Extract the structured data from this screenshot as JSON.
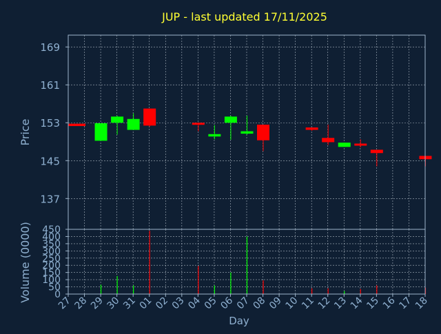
{
  "colors": {
    "background": "#0f1f33",
    "title": "#ffff33",
    "axis_text": "#8fb0d0",
    "frame": "#9fb6cc",
    "grid": "#c8d2dc",
    "up": "#00ff00",
    "down": "#ff0000"
  },
  "chart_data": {
    "type": "candlestick",
    "title": "JUP - last updated 17/11/2025",
    "xlabel": "Day",
    "price_ylabel": "Price",
    "volume_ylabel": "Volume (0000)",
    "grid": true,
    "x_tick_labels": [
      "27",
      "28",
      "29",
      "30",
      "31",
      "01",
      "02",
      "03",
      "04",
      "05",
      "06",
      "07",
      "08",
      "09",
      "10",
      "11",
      "12",
      "13",
      "14",
      "15",
      "16",
      "17",
      "18"
    ],
    "price_ylim": [
      130.5,
      171.5
    ],
    "price_yticks": [
      169,
      161,
      153,
      145,
      137
    ],
    "volume_ylim": [
      0,
      450
    ],
    "volume_yticks": [
      450,
      400,
      350,
      300,
      250,
      200,
      150,
      100,
      50,
      0
    ],
    "candles": [
      {
        "day": "27",
        "open": 152.8,
        "high": 152.8,
        "low": 152.3,
        "close": 152.3,
        "volume": 0
      },
      {
        "day": "28",
        "open": 149.2,
        "high": 152.9,
        "low": 149.2,
        "close": 152.9,
        "volume": 65
      },
      {
        "day": "29",
        "open": 153.0,
        "high": 154.5,
        "low": 150.5,
        "close": 154.3,
        "volume": 125
      },
      {
        "day": "30",
        "open": 151.5,
        "high": 155.0,
        "low": 151.5,
        "close": 153.8,
        "volume": 60
      },
      {
        "day": "31",
        "open": 156.0,
        "high": 156.0,
        "low": 152.2,
        "close": 152.4,
        "volume": 440
      },
      {
        "day": "03",
        "open": 153.0,
        "high": 153.0,
        "low": 151.2,
        "close": 152.8,
        "volume": 195
      },
      {
        "day": "04",
        "open": 150.1,
        "high": 152.5,
        "low": 149.5,
        "close": 150.6,
        "volume": 60
      },
      {
        "day": "05",
        "open": 153.0,
        "high": 154.5,
        "low": 149.4,
        "close": 154.3,
        "volume": 150
      },
      {
        "day": "06",
        "open": 150.7,
        "high": 154.5,
        "low": 150.5,
        "close": 151.2,
        "volume": 400
      },
      {
        "day": "07",
        "open": 152.6,
        "high": 152.6,
        "low": 147.0,
        "close": 149.3,
        "volume": 95
      },
      {
        "day": "10",
        "open": 152.0,
        "high": 152.0,
        "low": 151.3,
        "close": 151.5,
        "volume": 40
      },
      {
        "day": "11",
        "open": 149.8,
        "high": 152.6,
        "low": 148.3,
        "close": 148.9,
        "volume": 40
      },
      {
        "day": "12",
        "open": 147.9,
        "high": 148.8,
        "low": 147.9,
        "close": 148.8,
        "volume": 20
      },
      {
        "day": "13",
        "open": 148.6,
        "high": 149.5,
        "low": 147.8,
        "close": 148.3,
        "volume": 35
      },
      {
        "day": "14",
        "open": 147.3,
        "high": 147.3,
        "low": 143.8,
        "close": 146.6,
        "volume": 60
      },
      {
        "day": "17",
        "open": 146.0,
        "high": 146.0,
        "low": 143.8,
        "close": 145.3,
        "volume": 45
      }
    ]
  }
}
